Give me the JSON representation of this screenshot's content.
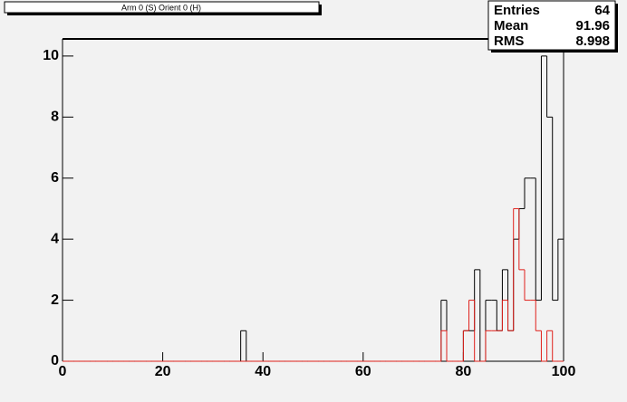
{
  "chart_data": {
    "type": "histogram",
    "title": "Arm 0 (S) Orient 0 (H)",
    "stats": [
      {
        "label": "Entries",
        "value": "64"
      },
      {
        "label": "Mean",
        "value": "91.96"
      },
      {
        "label": "RMS",
        "value": "8.998"
      }
    ],
    "bins": [
      0,
      1.11,
      2.22,
      3.33,
      4.44,
      5.56,
      6.67,
      7.78,
      8.89,
      10,
      11.11,
      12.22,
      13.33,
      14.44,
      15.56,
      16.67,
      17.78,
      18.89,
      20,
      21.11,
      22.22,
      23.33,
      24.44,
      25.56,
      26.67,
      27.78,
      28.89,
      30,
      31.11,
      32.22,
      33.33,
      34.44,
      35.56,
      36.67,
      37.78,
      38.89,
      40,
      41.11,
      42.22,
      43.33,
      44.44,
      45.56,
      46.67,
      47.78,
      48.89,
      50,
      51.11,
      52.22,
      53.33,
      54.44,
      55.56,
      56.67,
      57.78,
      58.89,
      60,
      61.11,
      62.22,
      63.33,
      64.44,
      65.56,
      66.67,
      67.78,
      68.89,
      70,
      71.11,
      72.22,
      73.33,
      74.44,
      75.56,
      76.67,
      77.78,
      78.89,
      80,
      81.11,
      82.22,
      83.33,
      84.44,
      85.56,
      86.67,
      87.78,
      88.89,
      90,
      91.11,
      92.22,
      93.33,
      94.44,
      95.56,
      96.67,
      97.78,
      98.89,
      100
    ],
    "series": [
      {
        "color": "#000000",
        "values": [
          0,
          0,
          0,
          0,
          0,
          0,
          0,
          0,
          0,
          0,
          0,
          0,
          0,
          0,
          0,
          0,
          0,
          0,
          0,
          0,
          0,
          0,
          0,
          0,
          0,
          0,
          0,
          0,
          0,
          0,
          0,
          0,
          1,
          0,
          0,
          0,
          0,
          0,
          0,
          0,
          0,
          0,
          0,
          0,
          0,
          0,
          0,
          0,
          0,
          0,
          0,
          0,
          0,
          0,
          0,
          0,
          0,
          0,
          0,
          0,
          0,
          0,
          0,
          0,
          0,
          0,
          0,
          0,
          2,
          0,
          0,
          0,
          1,
          1,
          3,
          0,
          2,
          2,
          1,
          3,
          1,
          4,
          5,
          6,
          6,
          2,
          10,
          8,
          2,
          4
        ]
      },
      {
        "color": "#e0201b",
        "values": [
          0,
          0,
          0,
          0,
          0,
          0,
          0,
          0,
          0,
          0,
          0,
          0,
          0,
          0,
          0,
          0,
          0,
          0,
          0,
          0,
          0,
          0,
          0,
          0,
          0,
          0,
          0,
          0,
          0,
          0,
          0,
          0,
          0,
          0,
          0,
          0,
          0,
          0,
          0,
          0,
          0,
          0,
          0,
          0,
          0,
          0,
          0,
          0,
          0,
          0,
          0,
          0,
          0,
          0,
          0,
          0,
          0,
          0,
          0,
          0,
          0,
          0,
          0,
          0,
          0,
          0,
          0,
          0,
          1,
          0,
          0,
          0,
          1,
          2,
          0,
          0,
          1,
          1,
          1,
          2,
          1,
          5,
          3,
          2,
          2,
          1,
          0,
          1,
          0,
          0
        ]
      }
    ],
    "xlim": [
      0,
      100
    ],
    "xticks": [
      0,
      20,
      40,
      60,
      80,
      100
    ],
    "ylim": [
      0,
      10.56
    ],
    "yticks": [
      0,
      2,
      4,
      6,
      8,
      10
    ]
  }
}
